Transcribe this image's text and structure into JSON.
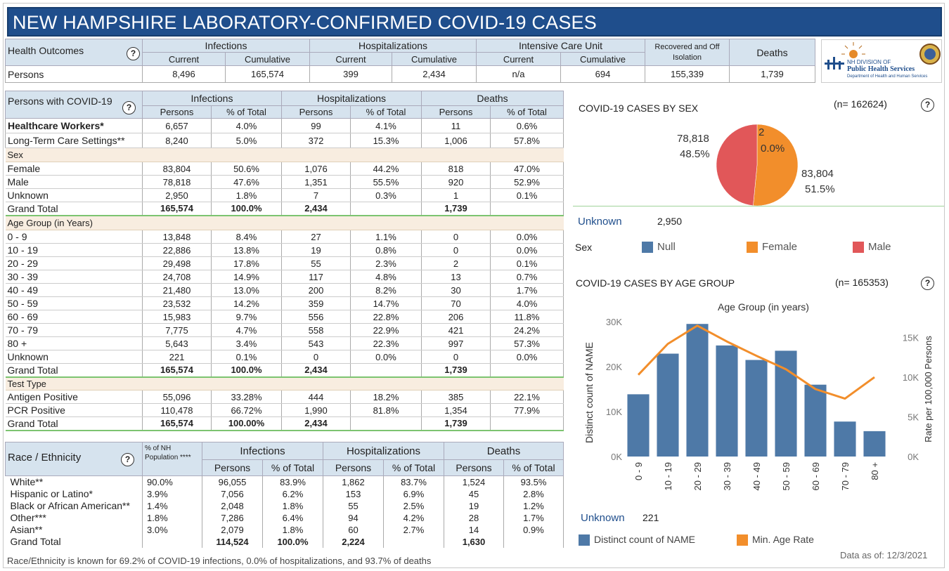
{
  "title": "NEW HAMPSHIRE LABORATORY-CONFIRMED COVID-19 CASES",
  "help_glyph": "?",
  "outcomes": {
    "label": "Health Outcomes",
    "row_label": "Persons",
    "groups": [
      "Infections",
      "Hospitalizations",
      "Intensive Care Unit"
    ],
    "sub": [
      "Current",
      "Cumulative",
      "Current",
      "Cumulative",
      "Current",
      "Cumulative"
    ],
    "recovered": "Recovered and Off Isolation",
    "deaths": "Deaths",
    "values": [
      "8,496",
      "165,574",
      "399",
      "2,434",
      "n/a",
      "694",
      "155,339",
      "1,739"
    ]
  },
  "logo": {
    "line1": "NH DIVISION OF",
    "line2": "Public Health Services",
    "line3": "Department of Health and Human Services"
  },
  "persons_table": {
    "label": "Persons with COVID-19",
    "groups": [
      "Infections",
      "Hospitalizations",
      "Deaths"
    ],
    "sub": [
      "Persons",
      "% of Total",
      "Persons",
      "% of Total",
      "Persons",
      "% of Total"
    ],
    "top_rows": [
      {
        "label": "Healthcare Workers*",
        "vals": [
          "6,657",
          "4.0%",
          "99",
          "4.1%",
          "11",
          "0.6%"
        ]
      },
      {
        "label": "Long-Term Care Settings**",
        "vals": [
          "8,240",
          "5.0%",
          "372",
          "15.3%",
          "1,006",
          "57.8%"
        ]
      }
    ],
    "sections": [
      {
        "name": "Sex",
        "rows": [
          {
            "label": "Female",
            "vals": [
              "83,804",
              "50.6%",
              "1,076",
              "44.2%",
              "818",
              "47.0%"
            ]
          },
          {
            "label": "Male",
            "vals": [
              "78,818",
              "47.6%",
              "1,351",
              "55.5%",
              "920",
              "52.9%"
            ]
          },
          {
            "label": "Unknown",
            "vals": [
              "2,950",
              "1.8%",
              "7",
              "0.3%",
              "1",
              "0.1%"
            ]
          },
          {
            "label": "Grand Total",
            "vals": [
              "165,574",
              "100.0%",
              "2,434",
              "",
              "1,739",
              ""
            ]
          }
        ]
      },
      {
        "name": "Age Group (in Years)",
        "rows": [
          {
            "label": "0 - 9",
            "vals": [
              "13,848",
              "8.4%",
              "27",
              "1.1%",
              "0",
              "0.0%"
            ]
          },
          {
            "label": "10 - 19",
            "vals": [
              "22,886",
              "13.8%",
              "19",
              "0.8%",
              "0",
              "0.0%"
            ]
          },
          {
            "label": "20 - 29",
            "vals": [
              "29,498",
              "17.8%",
              "55",
              "2.3%",
              "2",
              "0.1%"
            ]
          },
          {
            "label": "30 - 39",
            "vals": [
              "24,708",
              "14.9%",
              "117",
              "4.8%",
              "13",
              "0.7%"
            ]
          },
          {
            "label": "40 - 49",
            "vals": [
              "21,480",
              "13.0%",
              "200",
              "8.2%",
              "30",
              "1.7%"
            ]
          },
          {
            "label": "50 - 59",
            "vals": [
              "23,532",
              "14.2%",
              "359",
              "14.7%",
              "70",
              "4.0%"
            ]
          },
          {
            "label": "60 - 69",
            "vals": [
              "15,983",
              "9.7%",
              "556",
              "22.8%",
              "206",
              "11.8%"
            ]
          },
          {
            "label": "70 - 79",
            "vals": [
              "7,775",
              "4.7%",
              "558",
              "22.9%",
              "421",
              "24.2%"
            ]
          },
          {
            "label": "80 +",
            "vals": [
              "5,643",
              "3.4%",
              "543",
              "22.3%",
              "997",
              "57.3%"
            ]
          },
          {
            "label": "Unknown",
            "vals": [
              "221",
              "0.1%",
              "0",
              "0.0%",
              "0",
              "0.0%"
            ]
          },
          {
            "label": "Grand Total",
            "vals": [
              "165,574",
              "100.0%",
              "2,434",
              "",
              "1,739",
              ""
            ]
          }
        ]
      },
      {
        "name": "Test Type",
        "rows": [
          {
            "label": "Antigen Positive",
            "vals": [
              "55,096",
              "33.28%",
              "444",
              "18.2%",
              "385",
              "22.1%"
            ]
          },
          {
            "label": "PCR Positive",
            "vals": [
              "110,478",
              "66.72%",
              "1,990",
              "81.8%",
              "1,354",
              "77.9%"
            ]
          },
          {
            "label": "Grand Total",
            "vals": [
              "165,574",
              "100.00%",
              "2,434",
              "",
              "1,739",
              ""
            ]
          }
        ]
      }
    ]
  },
  "race_table": {
    "label": "Race / Ethnicity",
    "pop_header": "% of NH Population ****",
    "groups": [
      "Infections",
      "Hospitalizations",
      "Deaths"
    ],
    "sub": [
      "Persons",
      "% of Total",
      "Persons",
      "% of Total",
      "Persons",
      "% of Total"
    ],
    "rows": [
      {
        "label": "White**",
        "vals": [
          "90.0%",
          "96,055",
          "83.9%",
          "1,862",
          "83.7%",
          "1,524",
          "93.5%"
        ]
      },
      {
        "label": "Hispanic or Latino*",
        "vals": [
          "3.9%",
          "7,056",
          "6.2%",
          "153",
          "6.9%",
          "45",
          "2.8%"
        ]
      },
      {
        "label": "Black or African American**",
        "vals": [
          "1.4%",
          "2,048",
          "1.8%",
          "55",
          "2.5%",
          "19",
          "1.2%"
        ]
      },
      {
        "label": "Other***",
        "vals": [
          "1.8%",
          "7,286",
          "6.4%",
          "94",
          "4.2%",
          "28",
          "1.7%"
        ]
      },
      {
        "label": "Asian**",
        "vals": [
          "3.0%",
          "2,079",
          "1.8%",
          "60",
          "2.7%",
          "14",
          "0.9%"
        ]
      },
      {
        "label": "Grand Total",
        "vals": [
          "",
          "114,524",
          "100.0%",
          "2,224",
          "",
          "1,630",
          ""
        ]
      }
    ],
    "footnote": "Race/Ethnicity is known for 69.2% of COVID-19 infections, 0.0% of hospitalizations, and 93.7% of deaths"
  },
  "data_as_of": "Data as of:  12/3/2021",
  "chart_data": [
    {
      "type": "pie",
      "title": "COVID-19 CASES BY SEX",
      "n_label": "(n= 162624)",
      "slices": [
        {
          "name": "Null",
          "value": 2,
          "pct_label": "0.0%",
          "value_label": "2",
          "color": "#4e79a7"
        },
        {
          "name": "Female",
          "value": 83804,
          "pct_label": "51.5%",
          "value_label": "83,804",
          "color": "#f28e2b"
        },
        {
          "name": "Male",
          "value": 78818,
          "pct_label": "48.5%",
          "value_label": "78,818",
          "color": "#e15759"
        }
      ],
      "unknown_label": "Unknown",
      "unknown_value": "2,950",
      "legend_title": "Sex",
      "legend": [
        "Null",
        "Female",
        "Male"
      ]
    },
    {
      "type": "bar",
      "title": "COVID-19 CASES BY AGE GROUP",
      "n_label": "(n= 165353)",
      "xlabel": "Age Group (in years)",
      "ylabel": "Distinct count of NAME",
      "y2label": "Rate per 100,000 Persons",
      "categories": [
        "0 - 9",
        "10 - 19",
        "20 - 29",
        "30 - 39",
        "40 - 49",
        "50 - 59",
        "60 - 69",
        "70 - 79",
        "80 +"
      ],
      "series": [
        {
          "name": "Distinct count of NAME",
          "type": "bar",
          "axis": "left",
          "color": "#4e79a7",
          "values": [
            13848,
            22886,
            29498,
            24708,
            21480,
            23532,
            15983,
            7775,
            5643
          ]
        },
        {
          "name": "Min. Age Rate",
          "type": "line",
          "axis": "right",
          "color": "#f28e2b",
          "values": [
            10300,
            14200,
            16500,
            14500,
            12700,
            11000,
            8500,
            7300,
            10000
          ]
        }
      ],
      "ylim": [
        0,
        30000
      ],
      "yticks": [
        "0K",
        "10K",
        "20K",
        "30K"
      ],
      "y2lim": [
        0,
        17000
      ],
      "y2ticks": [
        "0K",
        "5K",
        "10K",
        "15K"
      ],
      "unknown_label": "Unknown",
      "unknown_value": "221"
    }
  ]
}
